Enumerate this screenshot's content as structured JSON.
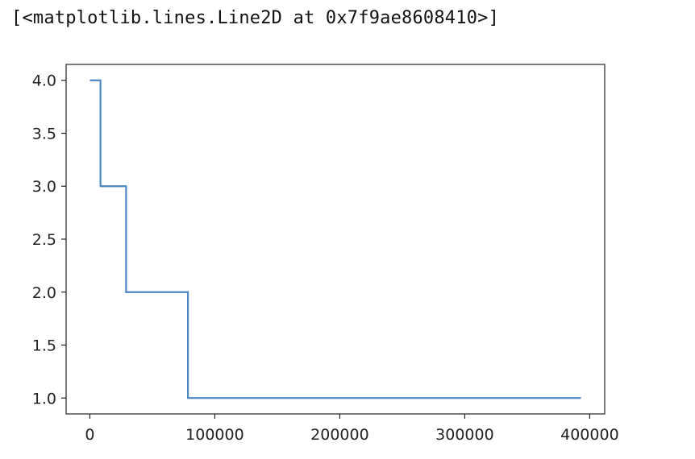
{
  "output": {
    "repr_text": "[<matplotlib.lines.Line2D at 0x7f9ae8608410>]"
  },
  "chart_data": {
    "type": "line",
    "title": "",
    "xlabel": "",
    "ylabel": "",
    "grid": false,
    "line_color": "#4f86c0",
    "xlim": [
      -19000,
      412000
    ],
    "ylim": [
      0.85,
      4.15
    ],
    "xticks": [
      0,
      100000,
      200000,
      300000,
      400000
    ],
    "xtick_labels": [
      "0",
      "100000",
      "200000",
      "300000",
      "400000"
    ],
    "yticks": [
      1.0,
      1.5,
      2.0,
      2.5,
      3.0,
      3.5,
      4.0
    ],
    "ytick_labels": [
      "1.0",
      "1.5",
      "2.0",
      "2.5",
      "3.0",
      "3.5",
      "4.0"
    ],
    "series": [
      {
        "x": [
          0,
          8500,
          8500,
          29000,
          29000,
          78500,
          78500,
          393000
        ],
        "y": [
          4.0,
          4.0,
          3.0,
          3.0,
          2.0,
          2.0,
          1.0,
          1.0
        ]
      }
    ]
  }
}
